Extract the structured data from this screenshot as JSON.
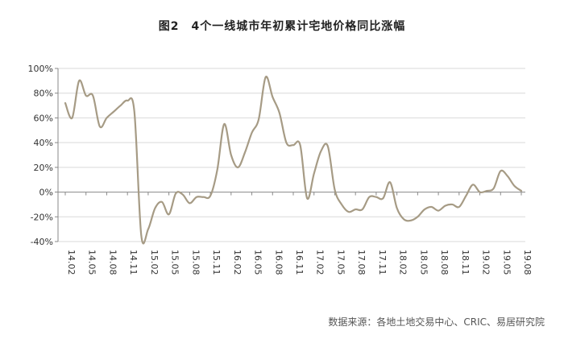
{
  "title": "图2　4个一线城市年初累计宅地价格同比涨幅",
  "source": "数据来源：各地土地交易中心、CRIC、易居研究院",
  "chart_data": {
    "type": "line",
    "xlabel": "",
    "ylabel": "",
    "ylim": [
      -40,
      100
    ],
    "yticks": [
      100,
      80,
      60,
      40,
      20,
      0,
      -20,
      -40
    ],
    "ytick_labels": [
      "100%",
      "80%",
      "60%",
      "40%",
      "20%",
      "0%",
      "-20%",
      "-40%"
    ],
    "xticks": [
      "14.02",
      "14.05",
      "14.08",
      "14.11",
      "15.02",
      "15.05",
      "15.08",
      "15.11",
      "16.02",
      "16.05",
      "16.08",
      "16.11",
      "17.02",
      "17.05",
      "17.08",
      "17.11",
      "18.02",
      "18.05",
      "18.08",
      "18.11",
      "19.02",
      "19.05",
      "19.08"
    ],
    "x": [
      "14.02",
      "14.03",
      "14.04",
      "14.05",
      "14.06",
      "14.07",
      "14.08",
      "14.09",
      "14.10",
      "14.11",
      "14.12",
      "15.01",
      "15.02",
      "15.03",
      "15.04",
      "15.05",
      "15.06",
      "15.07",
      "15.08",
      "15.09",
      "15.10",
      "15.11",
      "15.12",
      "16.01",
      "16.02",
      "16.03",
      "16.04",
      "16.05",
      "16.06",
      "16.07",
      "16.08",
      "16.09",
      "16.10",
      "16.11",
      "16.12",
      "17.01",
      "17.02",
      "17.03",
      "17.04",
      "17.05",
      "17.06",
      "17.07",
      "17.08",
      "17.09",
      "17.10",
      "17.11",
      "17.12",
      "18.01",
      "18.02",
      "18.03",
      "18.04",
      "18.05",
      "18.06",
      "18.07",
      "18.08",
      "18.09",
      "18.10",
      "18.11",
      "18.12",
      "19.01",
      "19.02",
      "19.03",
      "19.04",
      "19.05",
      "19.06",
      "19.07",
      "19.08"
    ],
    "values": [
      72,
      60,
      90,
      78,
      78,
      53,
      60,
      65,
      70,
      74,
      65,
      -35,
      -30,
      -13,
      -8,
      -18,
      -1,
      -2,
      -9,
      -4,
      -4,
      -3,
      18,
      55,
      30,
      20,
      32,
      48,
      59,
      93,
      77,
      64,
      40,
      38,
      38,
      -5,
      15,
      33,
      37,
      2,
      -10,
      -16,
      -14,
      -14,
      -4,
      -4,
      -5,
      8,
      -13,
      -22,
      -23,
      -20,
      -14,
      -12,
      -15,
      -11,
      -10,
      -12,
      -3,
      6,
      0,
      1,
      3,
      17,
      13,
      5,
      1
    ],
    "series_color": "#a69b85",
    "grid": "horizontal",
    "legend": "none"
  }
}
